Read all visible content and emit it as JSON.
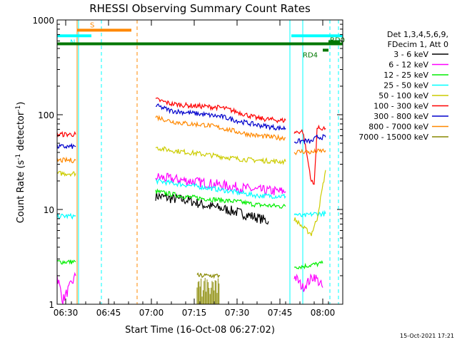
{
  "chart_data": {
    "type": "line",
    "title": "RHESSI Observing Summary Count Rates",
    "xlabel": "Start Time (16-Oct-08 06:27:02)",
    "ylabel_main": "Count Rate (s",
    "ylabel_sup1": "-1",
    "ylabel_mid": " detector",
    "ylabel_sup2": "-1",
    "ylabel_end": ")",
    "x_unit": "minutes since 06:27:02",
    "xlim": [
      0,
      100
    ],
    "ylim": [
      1,
      1000
    ],
    "yscale": "log",
    "x_ticks": [
      {
        "v": 3,
        "label": "06:30"
      },
      {
        "v": 18,
        "label": "06:45"
      },
      {
        "v": 33,
        "label": "07:00"
      },
      {
        "v": 48,
        "label": "07:15"
      },
      {
        "v": 63,
        "label": "07:30"
      },
      {
        "v": 78,
        "label": "07:45"
      },
      {
        "v": 93,
        "label": "08:00"
      }
    ],
    "y_ticks": [
      {
        "v": 1,
        "label": "1"
      },
      {
        "v": 10,
        "label": "10"
      },
      {
        "v": 100,
        "label": "100"
      },
      {
        "v": 1000,
        "label": "1000"
      }
    ],
    "legend_header": [
      "Det 1,3,4,5,6,9,",
      "FDecim 1, Att 0"
    ],
    "series": [
      {
        "name": "3 - 6 keV",
        "color": "#000000",
        "segments": [
          [
            [
              34.5,
              14
            ],
            [
              40,
              13
            ],
            [
              46,
              12.5
            ],
            [
              52,
              11
            ],
            [
              58,
              10.2
            ],
            [
              64,
              9.2
            ],
            [
              70,
              8.2
            ],
            [
              74,
              7.5
            ]
          ]
        ]
      },
      {
        "name": "6 - 12 keV",
        "color": "#ff00ff",
        "segments": [
          [
            [
              0,
              2
            ],
            [
              2,
              1.1
            ],
            [
              6.5,
              2
            ]
          ],
          [
            [
              34.5,
              22
            ],
            [
              40,
              21
            ],
            [
              46,
              20
            ],
            [
              52,
              19
            ],
            [
              58,
              18
            ],
            [
              64,
              17
            ],
            [
              70,
              16
            ],
            [
              78,
              15.5
            ],
            [
              80,
              15.5
            ]
          ],
          [
            [
              83,
              2
            ],
            [
              86,
              1.5
            ],
            [
              90,
              2
            ],
            [
              93,
              1.5
            ]
          ]
        ]
      },
      {
        "name": "12 - 25 keV",
        "color": "#00ee00",
        "segments": [
          [
            [
              0,
              2.8
            ],
            [
              6.5,
              2.8
            ]
          ],
          [
            [
              34.5,
              15.5
            ],
            [
              40,
              14.5
            ],
            [
              46,
              13.5
            ],
            [
              52,
              13
            ],
            [
              58,
              12.5
            ],
            [
              64,
              12
            ],
            [
              70,
              11.2
            ],
            [
              78,
              10.8
            ],
            [
              80,
              10.8
            ]
          ],
          [
            [
              83,
              2.5
            ],
            [
              86,
              2.5
            ],
            [
              89,
              2.6
            ],
            [
              93,
              2.7
            ]
          ]
        ]
      },
      {
        "name": "25 - 50 keV",
        "color": "#00ffff",
        "segments": [
          [
            [
              0,
              8.5
            ],
            [
              6.5,
              8.5
            ]
          ],
          [
            [
              34.5,
              20
            ],
            [
              40,
              19
            ],
            [
              46,
              18
            ],
            [
              52,
              17
            ],
            [
              58,
              16
            ],
            [
              64,
              15
            ],
            [
              70,
              14
            ],
            [
              78,
              13.8
            ],
            [
              80,
              13.8
            ]
          ],
          [
            [
              83,
              9
            ],
            [
              86,
              8.5
            ],
            [
              90,
              9
            ],
            [
              94,
              9
            ]
          ]
        ]
      },
      {
        "name": "50 - 100 keV",
        "color": "#cccc00",
        "segments": [
          [
            [
              0,
              24
            ],
            [
              6.5,
              24
            ]
          ],
          [
            [
              34.5,
              45
            ],
            [
              40,
              42
            ],
            [
              46,
              40
            ],
            [
              52,
              38
            ],
            [
              58,
              36
            ],
            [
              64,
              34
            ],
            [
              70,
              33
            ],
            [
              78,
              32
            ],
            [
              80,
              32
            ]
          ],
          [
            [
              83,
              8
            ],
            [
              86,
              6.5
            ],
            [
              89,
              5.5
            ],
            [
              91,
              8
            ],
            [
              94,
              26
            ]
          ]
        ]
      },
      {
        "name": "100 - 300 keV",
        "color": "#ff0000",
        "segments": [
          [
            [
              0,
              62
            ],
            [
              6.5,
              62
            ]
          ],
          [
            [
              34.5,
              145
            ],
            [
              40,
              130
            ],
            [
              46,
              125
            ],
            [
              52,
              122
            ],
            [
              58,
              118
            ],
            [
              64,
              105
            ],
            [
              70,
              92
            ],
            [
              78,
              87
            ],
            [
              80,
              87
            ]
          ],
          [
            [
              83,
              65
            ],
            [
              86,
              67
            ],
            [
              89,
              20
            ],
            [
              90,
              18
            ],
            [
              91,
              72
            ],
            [
              94,
              72
            ]
          ]
        ]
      },
      {
        "name": "300 - 800 keV",
        "color": "#0000cc",
        "segments": [
          [
            [
              0,
              46
            ],
            [
              6.5,
              46
            ]
          ],
          [
            [
              34.5,
              125
            ],
            [
              40,
              110
            ],
            [
              46,
              105
            ],
            [
              52,
              100
            ],
            [
              58,
              95
            ],
            [
              64,
              85
            ],
            [
              70,
              78
            ],
            [
              78,
              72
            ],
            [
              80,
              72
            ]
          ],
          [
            [
              83,
              52
            ],
            [
              86,
              53
            ],
            [
              89,
              52
            ],
            [
              91,
              58
            ],
            [
              94,
              58
            ]
          ]
        ]
      },
      {
        "name": "800 - 7000 keV",
        "color": "#ff8800",
        "segments": [
          [
            [
              0,
              33
            ],
            [
              6.5,
              33
            ]
          ],
          [
            [
              34.5,
              95
            ],
            [
              40,
              85
            ],
            [
              46,
              80
            ],
            [
              52,
              78
            ],
            [
              58,
              72
            ],
            [
              64,
              65
            ],
            [
              70,
              60
            ],
            [
              78,
              57
            ],
            [
              80,
              57
            ]
          ],
          [
            [
              83,
              40
            ],
            [
              86,
              41
            ],
            [
              89,
              40
            ],
            [
              91,
              41
            ],
            [
              94,
              42
            ]
          ]
        ]
      },
      {
        "name": "7000 - 15000 keV",
        "color": "#888800",
        "segments": [
          [
            [
              49,
              2
            ],
            [
              57,
              2
            ]
          ]
        ]
      }
    ],
    "flag_bars": [
      {
        "label": "S",
        "color": "#ff8800",
        "x0": 7,
        "x1": 26,
        "y": 780
      },
      {
        "label": "N",
        "color": "#00ffff",
        "x0": 0,
        "x1": 12,
        "y": 680
      },
      {
        "label": "",
        "color": "#00ffff",
        "x0": 82,
        "x1": 100,
        "y": 680
      },
      {
        "label": "",
        "color": "#007700",
        "x0": 0,
        "x1": 100,
        "y": 560
      },
      {
        "label": "RD4",
        "color": "#007700",
        "x0": 93,
        "x1": 95,
        "y": 480
      },
      {
        "label": "RD0",
        "color": "#007700",
        "x0": 95,
        "x1": 99,
        "y": 590
      }
    ],
    "vlines": [
      {
        "x": 0,
        "color": "#00ffff",
        "style": "solid"
      },
      {
        "x": 7,
        "color": "#ff8800",
        "style": "solid"
      },
      {
        "x": 7.5,
        "color": "#00ffff",
        "style": "solid"
      },
      {
        "x": 15.5,
        "color": "#00ffff",
        "style": "dashed"
      },
      {
        "x": 28,
        "color": "#ff8800",
        "style": "dashed"
      },
      {
        "x": 81.5,
        "color": "#00ffff",
        "style": "solid"
      },
      {
        "x": 86,
        "color": "#00ffff",
        "style": "solid"
      },
      {
        "x": 95.5,
        "color": "#00ffff",
        "style": "dashed"
      },
      {
        "x": 98.5,
        "color": "#00ffff",
        "style": "dashed"
      }
    ],
    "timestamp": "15-Oct-2021 17:21"
  }
}
